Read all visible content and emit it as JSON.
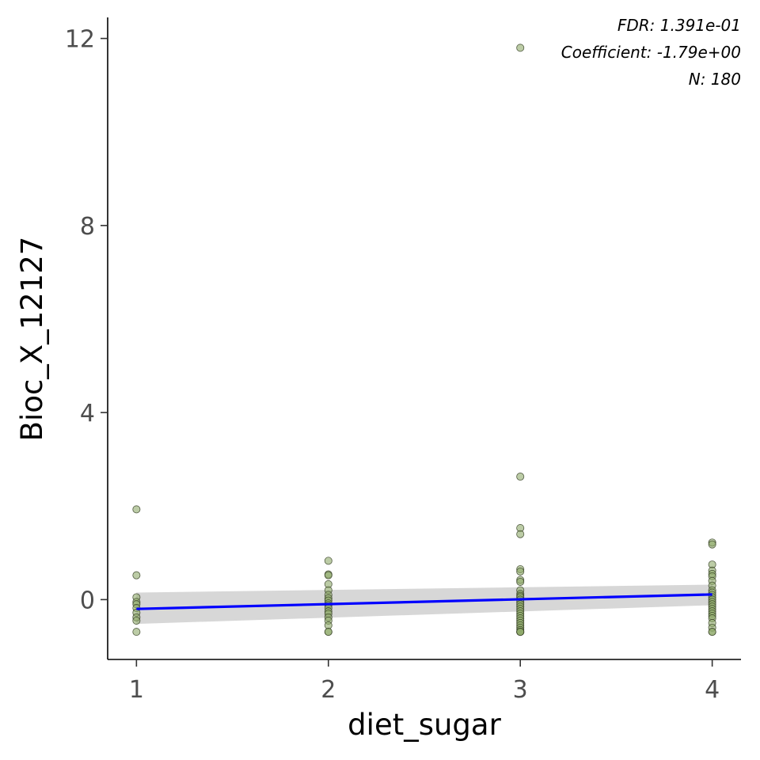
{
  "chart_data": {
    "type": "scatter",
    "title": "",
    "xlabel": "diet_sugar",
    "ylabel": "Bioc_X_12127",
    "xlim": [
      0.85,
      4.15
    ],
    "ylim": [
      -1.28,
      12.45
    ],
    "x_ticks": [
      1,
      2,
      3,
      4
    ],
    "y_ticks": [
      0,
      4,
      8,
      12
    ],
    "grid": false,
    "legend": "none",
    "annotations": [
      "FDR: 1.391e-01",
      "Coefficient: -1.79e+00",
      "N: 180"
    ],
    "colors": {
      "point_fill": "#8faa6a",
      "point_stroke": "#2f3a1f",
      "fit_line": "#0000ff",
      "confidence_band": "#bdbdbd"
    },
    "fit": {
      "x": [
        1,
        4
      ],
      "y": [
        -0.2,
        0.11
      ]
    },
    "band": {
      "x": [
        1,
        4
      ],
      "lower": [
        -0.52,
        -0.12
      ],
      "upper": [
        0.15,
        0.32
      ]
    },
    "series": [
      {
        "x": [
          1,
          1,
          1,
          1,
          1,
          1,
          1,
          1,
          1,
          1,
          2,
          2,
          2,
          2,
          2,
          2,
          2,
          2,
          2,
          2,
          2,
          2,
          2,
          2,
          2,
          2,
          2,
          2,
          3,
          3,
          3,
          3,
          3,
          3,
          3,
          3,
          3,
          3,
          3,
          3,
          3,
          3,
          3,
          3,
          3,
          3,
          3,
          3,
          3,
          3,
          3,
          3,
          3,
          3,
          3,
          3,
          3,
          3,
          4,
          4,
          4,
          4,
          4,
          4,
          4,
          4,
          4,
          4,
          4,
          4,
          4,
          4,
          4,
          4,
          4,
          4,
          4,
          4,
          4,
          4,
          4,
          4,
          4
        ],
        "y": [
          1.93,
          0.52,
          0.05,
          -0.05,
          -0.1,
          -0.18,
          -0.28,
          -0.38,
          -0.45,
          -0.69,
          0.83,
          0.54,
          0.52,
          0.33,
          0.2,
          0.1,
          0.03,
          -0.02,
          -0.08,
          -0.12,
          -0.18,
          -0.25,
          -0.3,
          -0.38,
          -0.45,
          -0.55,
          -0.69,
          -0.69,
          11.8,
          2.63,
          1.53,
          1.4,
          0.65,
          0.6,
          0.42,
          0.38,
          0.2,
          0.12,
          0.08,
          0.05,
          0.0,
          -0.05,
          -0.1,
          -0.15,
          -0.2,
          -0.25,
          -0.3,
          -0.35,
          -0.4,
          -0.45,
          -0.5,
          -0.55,
          -0.6,
          -0.65,
          -0.69,
          -0.69,
          -0.69,
          -0.69,
          1.22,
          1.18,
          0.75,
          0.62,
          0.55,
          0.5,
          0.4,
          0.3,
          0.2,
          0.15,
          0.1,
          0.05,
          0.0,
          -0.05,
          -0.1,
          -0.15,
          -0.2,
          -0.25,
          -0.3,
          -0.35,
          -0.4,
          -0.5,
          -0.6,
          -0.69,
          -0.69
        ]
      }
    ]
  }
}
